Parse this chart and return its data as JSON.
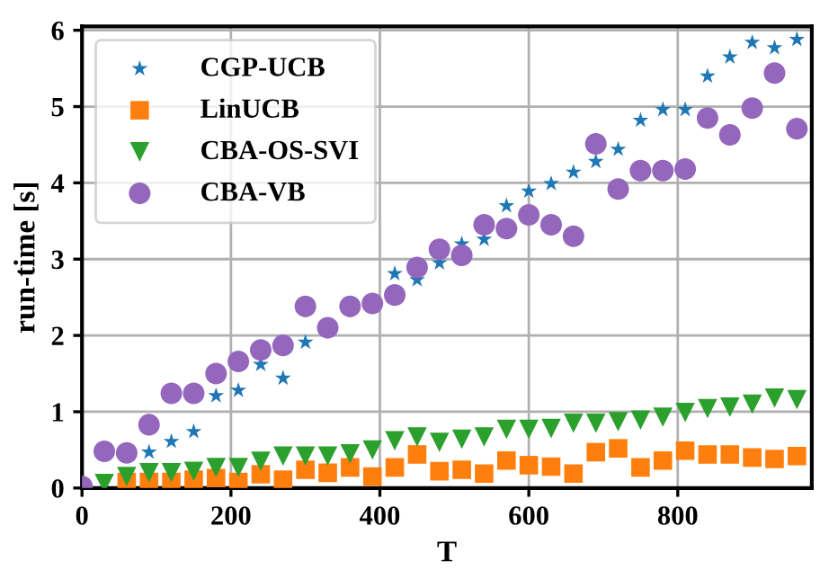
{
  "chart_data": {
    "type": "scatter",
    "xlabel": "T",
    "ylabel": "run-time [s]",
    "x": [
      0,
      30,
      60,
      90,
      120,
      150,
      180,
      210,
      240,
      270,
      300,
      330,
      360,
      390,
      420,
      450,
      480,
      510,
      540,
      570,
      600,
      630,
      660,
      690,
      720,
      750,
      780,
      810,
      840,
      870,
      900,
      930,
      960
    ],
    "series": [
      {
        "name": "CGP-UCB",
        "color": "#1f77b4",
        "marker": "star",
        "values": [
          null,
          null,
          null,
          0.47,
          0.61,
          0.74,
          1.21,
          1.28,
          1.62,
          1.44,
          1.91,
          null,
          null,
          null,
          2.81,
          2.73,
          2.95,
          3.2,
          3.26,
          3.7,
          3.89,
          3.99,
          4.14,
          4.28,
          4.44,
          4.82,
          4.96,
          4.96,
          5.4,
          5.65,
          5.84,
          5.77,
          5.88
        ]
      },
      {
        "name": "LinUCB",
        "color": "#ff7f0e",
        "marker": "square",
        "values": [
          null,
          null,
          0.08,
          0.08,
          0.08,
          0.11,
          0.13,
          0.08,
          0.18,
          0.11,
          0.24,
          0.2,
          0.27,
          0.15,
          0.27,
          0.44,
          0.22,
          0.24,
          0.19,
          0.36,
          0.3,
          0.28,
          0.19,
          0.47,
          0.52,
          0.27,
          0.36,
          0.49,
          0.44,
          0.44,
          0.4,
          0.38,
          0.42
        ]
      },
      {
        "name": "CBA-OS-SVI",
        "color": "#2ca02c",
        "marker": "triangle",
        "values": [
          null,
          0.06,
          0.15,
          0.2,
          0.2,
          0.22,
          0.27,
          0.27,
          0.35,
          0.42,
          0.42,
          0.42,
          0.45,
          0.5,
          0.62,
          0.67,
          0.6,
          0.64,
          0.67,
          0.77,
          0.77,
          0.78,
          0.85,
          0.85,
          0.87,
          0.89,
          0.93,
          0.99,
          1.04,
          1.06,
          1.1,
          1.18,
          1.16
        ]
      },
      {
        "name": "CBA-VB",
        "color": "#9467bd",
        "marker": "circle",
        "values": [
          0.02,
          0.48,
          0.46,
          0.83,
          1.24,
          1.24,
          1.5,
          1.66,
          1.81,
          1.87,
          2.38,
          2.1,
          2.38,
          2.42,
          2.53,
          2.89,
          3.13,
          3.05,
          3.45,
          3.4,
          3.58,
          3.45,
          3.3,
          4.51,
          3.92,
          4.16,
          4.16,
          4.18,
          4.85,
          4.63,
          4.98,
          5.44,
          4.71
        ]
      }
    ],
    "xlim": [
      0,
      980
    ],
    "ylim": [
      0,
      6.05
    ],
    "xticks": [
      0,
      200,
      400,
      600,
      800
    ],
    "yticks": [
      0,
      1,
      2,
      3,
      4,
      5,
      6
    ],
    "grid": true,
    "legend": "top left"
  }
}
